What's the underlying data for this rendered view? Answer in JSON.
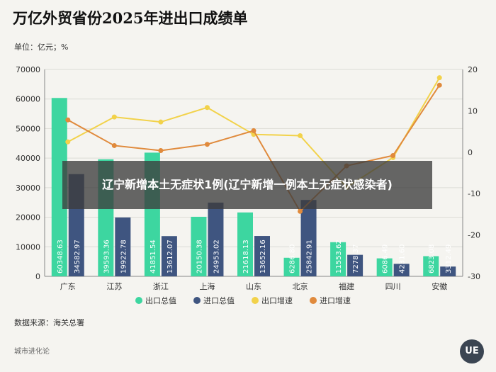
{
  "page": {
    "title": "万亿外贸省份2025年进出口成绩单",
    "unit": "单位：亿元；%",
    "source": "数据来源：海关总署",
    "brand": "城市进化论",
    "badge": "UE",
    "overlay_text": "辽宁新增本土无症状1例(辽宁新增一例本土无症状感染者)"
  },
  "chart_data": {
    "type": "bar",
    "categories": [
      "广东",
      "江苏",
      "浙江",
      "上海",
      "山东",
      "北京",
      "福建",
      "四川",
      "安徽"
    ],
    "series": [
      {
        "name": "出口总值",
        "kind": "bar",
        "axis": "left",
        "color": "#3dd6a0",
        "values": [
          60348.63,
          39593.36,
          41851.54,
          20150.38,
          21618.13,
          6286.8,
          11553.62,
          6086.49,
          6823.08
        ],
        "labels": [
          "60348.63",
          "39593.36",
          "41851.54",
          "20150.38",
          "21618.13",
          "6286.80",
          "11553.62",
          "6086.49",
          "6823.08"
        ]
      },
      {
        "name": "进口总值",
        "kind": "bar",
        "axis": "left",
        "color": "#3f5580",
        "values": [
          34582.97,
          19922.78,
          13612.07,
          24953.02,
          13652.16,
          25842.91,
          7278.37,
          4231.6,
          3312.49
        ],
        "labels": [
          "34582.97",
          "19922.78",
          "13612.07",
          "24953.02",
          "13652.16",
          "25842.91",
          "7278.37",
          "4231.60",
          "3312.49"
        ]
      },
      {
        "name": "出口增速",
        "kind": "line",
        "axis": "right",
        "color": "#f2d24a",
        "values": [
          2.5,
          8.5,
          7.3,
          10.8,
          4.3,
          4.0,
          -8.5,
          -1.3,
          18.0
        ]
      },
      {
        "name": "进口增速",
        "kind": "line",
        "axis": "right",
        "color": "#e08a3c",
        "values": [
          7.8,
          1.6,
          0.4,
          1.9,
          5.2,
          -14.3,
          -3.3,
          -0.8,
          16.2
        ]
      }
    ],
    "y_left": {
      "min": 0,
      "max": 70000,
      "ticks": [
        0,
        10000,
        20000,
        30000,
        40000,
        50000,
        60000,
        70000
      ]
    },
    "y_right": {
      "min": -30,
      "max": 20,
      "ticks": [
        -30,
        -20,
        -10,
        0,
        10,
        20
      ]
    },
    "legend_position": "bottom",
    "grid": true
  }
}
